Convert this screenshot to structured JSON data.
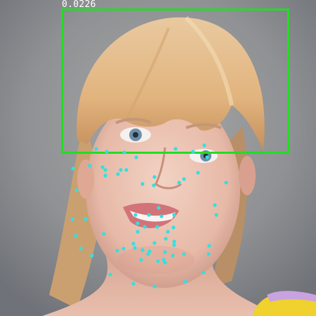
{
  "detection": {
    "score_label": "0.0226",
    "box_color": "#22dd22",
    "landmark_color": "#33e0e0",
    "landmark_count": 68
  }
}
